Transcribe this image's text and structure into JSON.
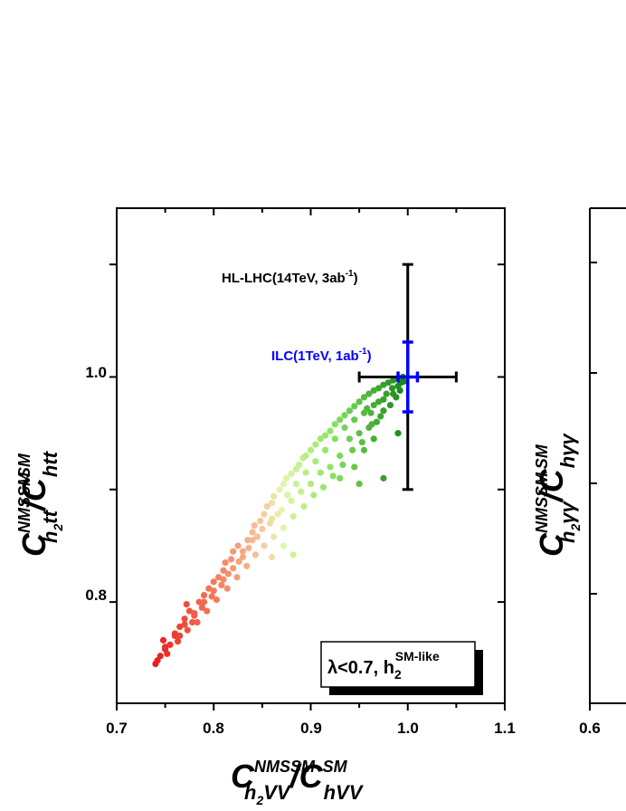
{
  "chart_data": [
    {
      "type": "scatter",
      "xlabel": {
        "main": "C",
        "sup": "NMSSM",
        "sub": "h",
        "sub2": "2",
        "sub3": "VV",
        "sep": "/C",
        "sup2": "SM",
        "sub4": "hVV"
      },
      "ylabel": {
        "main": "C",
        "sup": "NMSSM",
        "sub": "h",
        "sub2": "2",
        "sub3": "tt",
        "sep": "/C",
        "sup2": "SM",
        "sub4": "htt"
      },
      "xlim": [
        0.7,
        1.1
      ],
      "ylim": [
        0.71,
        1.15
      ],
      "xticks": [
        "0.7",
        "0.8",
        "0.9",
        "1.0",
        "1.1"
      ],
      "yticks": [
        "0.8",
        "1.0"
      ],
      "legend_box": {
        "prefix": "λ<0.7, h",
        "sub": "2",
        "sup": "SM-like"
      },
      "annotations": [
        {
          "text": "HL-LHC(14TeV, 3ab",
          "sup": "-1",
          "close": ")",
          "color": "#000000"
        },
        {
          "text": "ILC(1TeV, 1ab",
          "sup": "-1",
          "close": ")",
          "color": "#0000ff"
        }
      ],
      "error_bars": [
        {
          "name": "HL-LHC",
          "x": 1.0,
          "y": 1.0,
          "xerr": 0.05,
          "yerr": 0.1,
          "color": "#000000"
        },
        {
          "name": "ILC",
          "x": 1.0,
          "y": 1.0,
          "xerr": 0.01,
          "yerr": 0.031,
          "color": "#0000ff"
        }
      ],
      "points": [
        [
          0.74,
          0.745
        ],
        [
          0.745,
          0.752
        ],
        [
          0.75,
          0.758
        ],
        [
          0.748,
          0.766
        ],
        [
          0.755,
          0.762
        ],
        [
          0.76,
          0.772
        ],
        [
          0.765,
          0.778
        ],
        [
          0.77,
          0.785
        ],
        [
          0.775,
          0.792
        ],
        [
          0.772,
          0.798
        ],
        [
          0.78,
          0.788
        ],
        [
          0.785,
          0.8
        ],
        [
          0.79,
          0.806
        ],
        [
          0.795,
          0.812
        ],
        [
          0.8,
          0.818
        ],
        [
          0.805,
          0.822
        ],
        [
          0.81,
          0.828
        ],
        [
          0.812,
          0.835
        ],
        [
          0.818,
          0.838
        ],
        [
          0.82,
          0.845
        ],
        [
          0.825,
          0.85
        ],
        [
          0.83,
          0.845
        ],
        [
          0.835,
          0.855
        ],
        [
          0.84,
          0.862
        ],
        [
          0.842,
          0.868
        ],
        [
          0.848,
          0.872
        ],
        [
          0.852,
          0.878
        ],
        [
          0.855,
          0.885
        ],
        [
          0.86,
          0.888
        ],
        [
          0.862,
          0.894
        ],
        [
          0.868,
          0.9
        ],
        [
          0.872,
          0.905
        ],
        [
          0.875,
          0.91
        ],
        [
          0.88,
          0.914
        ],
        [
          0.885,
          0.918
        ],
        [
          0.888,
          0.922
        ],
        [
          0.892,
          0.928
        ],
        [
          0.895,
          0.93
        ],
        [
          0.9,
          0.935
        ],
        [
          0.905,
          0.94
        ],
        [
          0.91,
          0.945
        ],
        [
          0.915,
          0.948
        ],
        [
          0.92,
          0.952
        ],
        [
          0.925,
          0.958
        ],
        [
          0.93,
          0.962
        ],
        [
          0.935,
          0.966
        ],
        [
          0.94,
          0.97
        ],
        [
          0.945,
          0.974
        ],
        [
          0.95,
          0.978
        ],
        [
          0.955,
          0.982
        ],
        [
          0.96,
          0.985
        ],
        [
          0.965,
          0.988
        ],
        [
          0.97,
          0.99
        ],
        [
          0.975,
          0.993
        ],
        [
          0.98,
          0.995
        ],
        [
          0.985,
          0.997
        ],
        [
          0.99,
          0.999
        ],
        [
          0.995,
          1.0
        ],
        [
          0.958,
          0.972
        ],
        [
          0.962,
          0.968
        ],
        [
          0.97,
          0.978
        ],
        [
          0.978,
          0.985
        ],
        [
          0.984,
          0.99
        ],
        [
          0.99,
          0.992
        ],
        [
          0.993,
          0.995
        ],
        [
          0.988,
          0.982
        ],
        [
          0.975,
          0.97
        ],
        [
          0.968,
          0.96
        ],
        [
          0.96,
          0.955
        ],
        [
          0.95,
          0.95
        ],
        [
          0.94,
          0.945
        ],
        [
          0.93,
          0.93
        ],
        [
          0.92,
          0.92
        ],
        [
          0.91,
          0.915
        ],
        [
          0.9,
          0.905
        ],
        [
          0.89,
          0.898
        ],
        [
          0.88,
          0.89
        ],
        [
          0.87,
          0.882
        ],
        [
          0.86,
          0.874
        ],
        [
          0.85,
          0.865
        ],
        [
          0.84,
          0.855
        ],
        [
          0.83,
          0.84
        ],
        [
          0.82,
          0.83
        ],
        [
          0.81,
          0.82
        ],
        [
          0.8,
          0.81
        ],
        [
          0.79,
          0.8
        ],
        [
          0.78,
          0.79
        ],
        [
          0.77,
          0.78
        ],
        [
          0.76,
          0.77
        ],
        [
          0.75,
          0.76
        ],
        [
          0.742,
          0.748
        ],
        [
          0.752,
          0.754
        ],
        [
          0.765,
          0.77
        ],
        [
          0.778,
          0.782
        ],
        [
          0.788,
          0.795
        ],
        [
          0.798,
          0.805
        ],
        [
          0.808,
          0.815
        ],
        [
          0.815,
          0.825
        ],
        [
          0.826,
          0.836
        ],
        [
          0.836,
          0.848
        ],
        [
          0.845,
          0.858
        ],
        [
          0.858,
          0.87
        ],
        [
          0.866,
          0.878
        ],
        [
          0.876,
          0.895
        ],
        [
          0.885,
          0.905
        ],
        [
          0.895,
          0.915
        ],
        [
          0.905,
          0.925
        ],
        [
          0.915,
          0.935
        ],
        [
          0.925,
          0.945
        ],
        [
          0.935,
          0.955
        ],
        [
          0.945,
          0.962
        ],
        [
          0.955,
          0.968
        ],
        [
          0.965,
          0.975
        ],
        [
          0.975,
          0.98
        ],
        [
          0.985,
          0.985
        ],
        [
          0.992,
          0.988
        ],
        [
          0.996,
          0.996
        ],
        [
          0.982,
          0.975
        ],
        [
          0.972,
          0.965
        ],
        [
          0.963,
          0.958
        ],
        [
          0.953,
          0.942
        ],
        [
          0.943,
          0.935
        ],
        [
          0.933,
          0.922
        ],
        [
          0.923,
          0.912
        ],
        [
          0.913,
          0.902
        ],
        [
          0.903,
          0.895
        ],
        [
          0.893,
          0.885
        ],
        [
          0.882,
          0.876
        ],
        [
          0.872,
          0.866
        ],
        [
          0.862,
          0.858
        ],
        [
          0.852,
          0.85
        ],
        [
          0.843,
          0.842
        ],
        [
          0.834,
          0.832
        ],
        [
          0.824,
          0.822
        ],
        [
          0.814,
          0.812
        ],
        [
          0.803,
          0.802
        ],
        [
          0.793,
          0.792
        ],
        [
          0.783,
          0.782
        ],
        [
          0.773,
          0.775
        ],
        [
          0.763,
          0.765
        ],
        [
          0.95,
          0.905
        ],
        [
          0.975,
          0.91
        ],
        [
          0.882,
          0.842
        ],
        [
          0.86,
          0.84
        ],
        [
          0.872,
          0.85
        ],
        [
          0.99,
          0.95
        ],
        [
          0.945,
          0.92
        ],
        [
          0.93,
          0.91
        ],
        [
          0.955,
          0.935
        ],
        [
          0.965,
          0.945
        ]
      ]
    },
    {
      "type": "scatter",
      "xlim_min_label": "0.6",
      "ylabel": {
        "main": "C",
        "sup": "NMSSM",
        "sub": "h",
        "sub2": "2",
        "sub3": "γγ",
        "sep": "/C",
        "sup2": "SM",
        "sub4": "hγγ"
      }
    }
  ]
}
